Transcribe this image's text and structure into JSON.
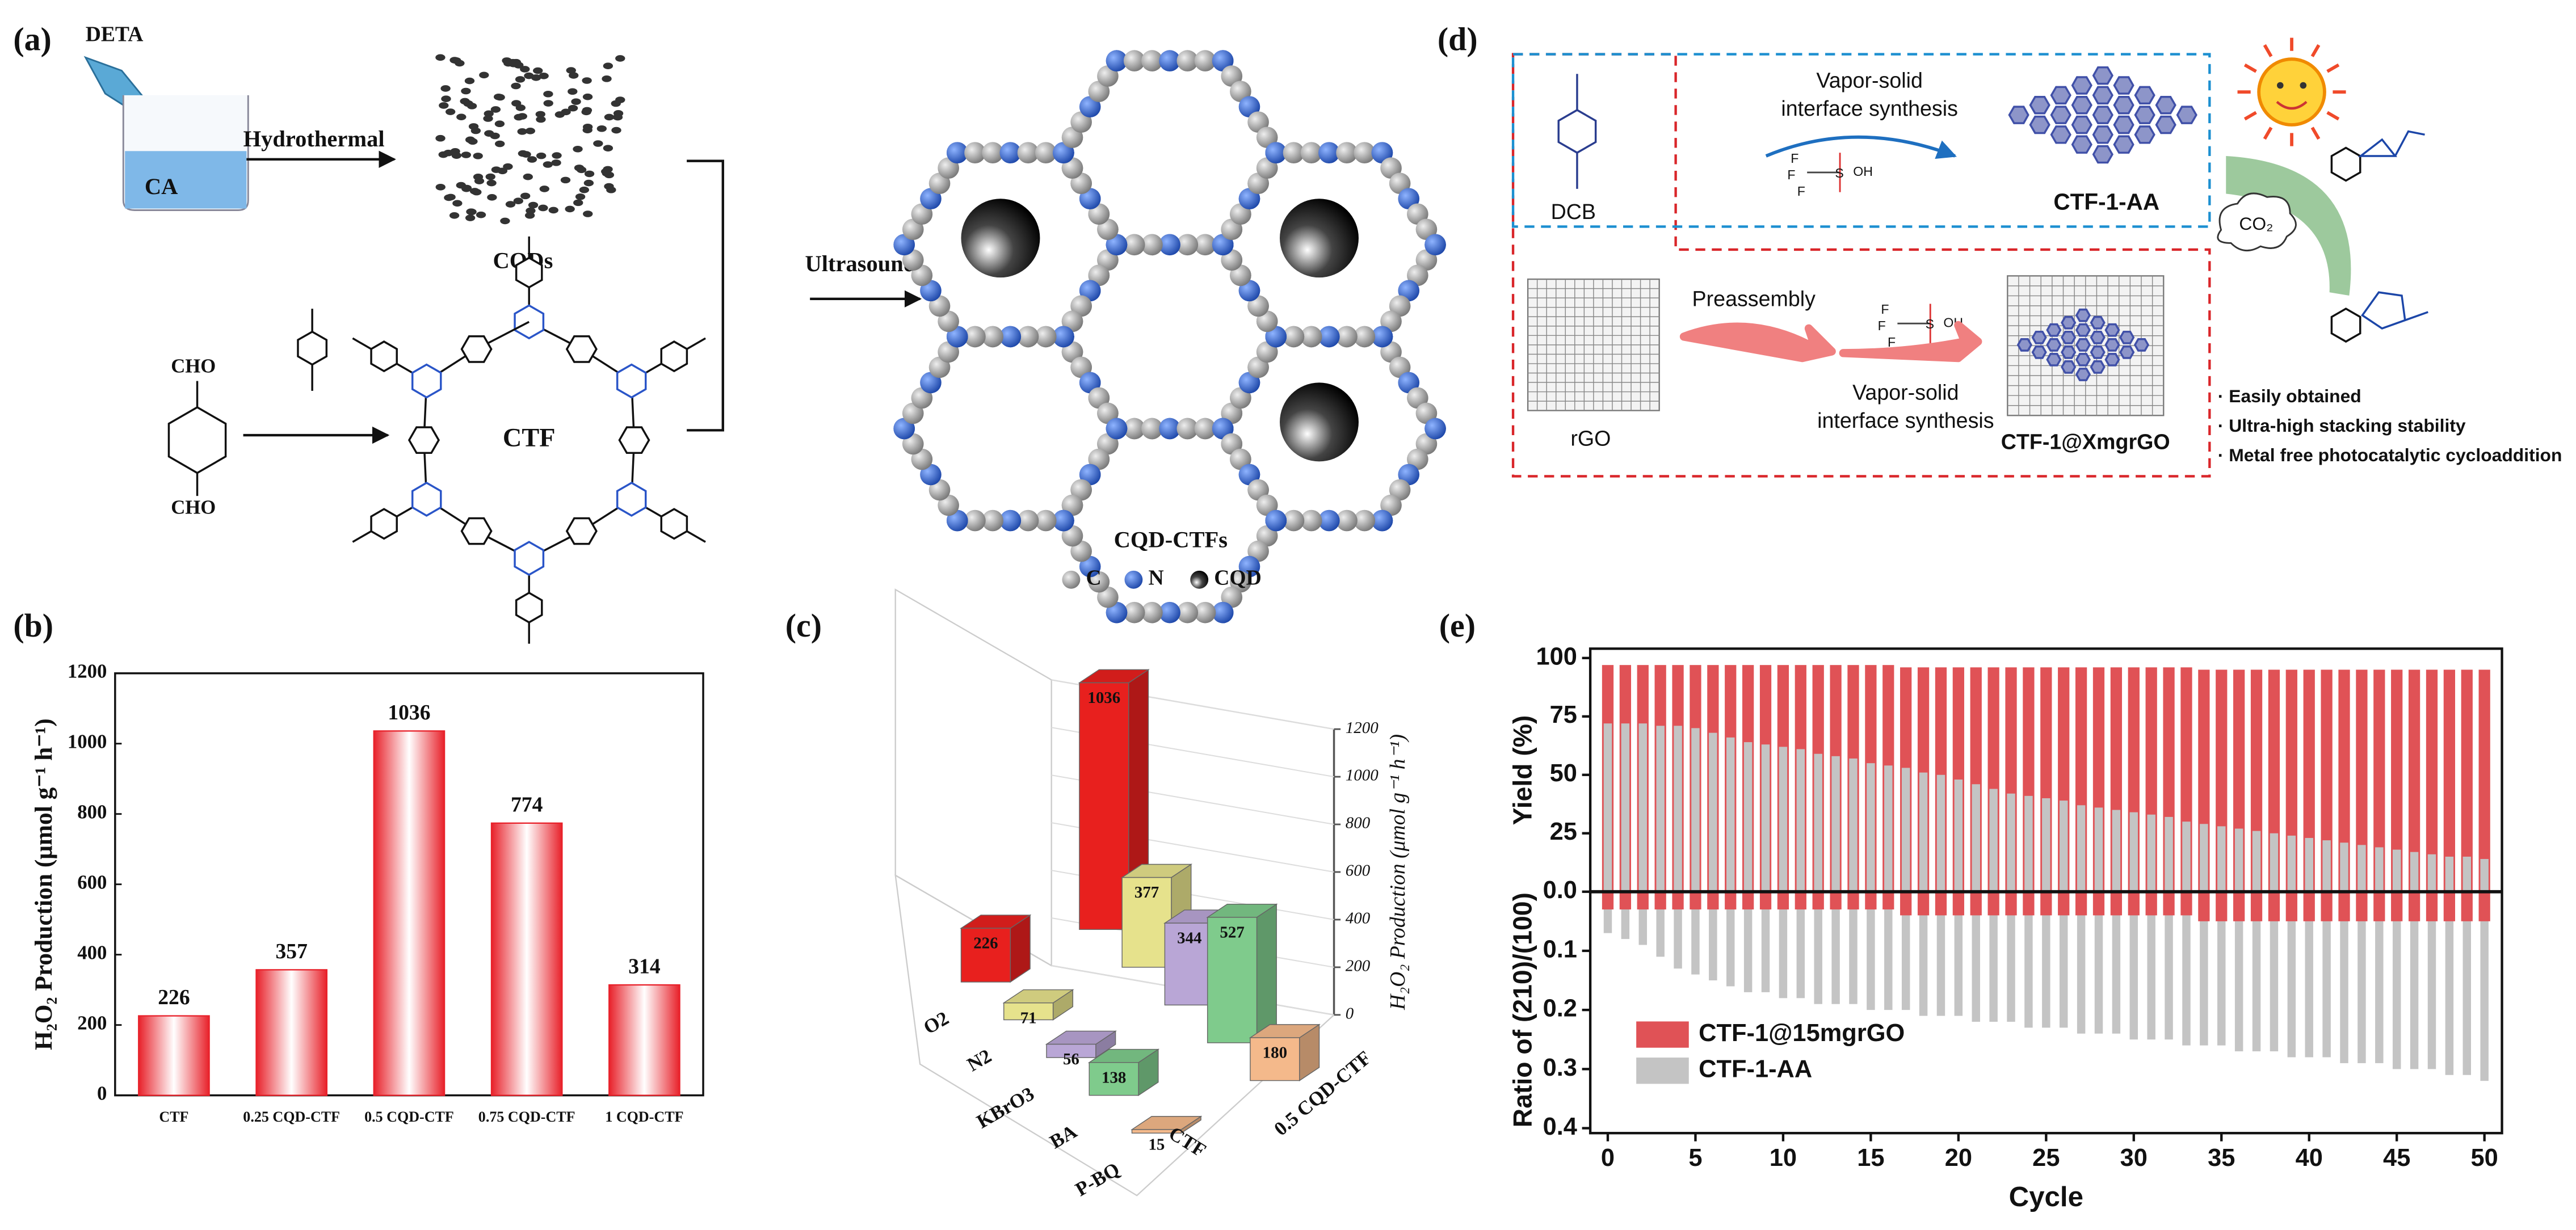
{
  "panel_a": {
    "label": "(a)",
    "reagent": "DETA",
    "solution": "CA",
    "step1": "Hydrothermal",
    "product1": "CQDs",
    "aldehyde_groups": [
      "CHO",
      "CHO"
    ],
    "framework": "CTF",
    "step2": "Ultrasound",
    "product2": "CQD-CTFs",
    "legend": [
      "C",
      "N",
      "CQD"
    ]
  },
  "panel_d": {
    "label": "(d)",
    "monomer": "DCB",
    "method_lines": [
      "Vapor-solid",
      "interface synthesis"
    ],
    "product1": "CTF-1-AA",
    "substrate": "rGO",
    "step": "Preassembly",
    "product2": "CTF-1@XmgrGO",
    "acid_atoms": [
      "F",
      "F",
      "F",
      "S",
      "OH"
    ],
    "gas": "CO₂",
    "features": [
      "· Easily obtained",
      "· Ultra-high stacking stability",
      "· Metal free photocatalytic cycloaddition"
    ]
  },
  "chart_data": [
    {
      "label": "(b)",
      "type": "bar",
      "categories": [
        "CTF",
        "0.25 CQD-CTF",
        "0.5 CQD-CTF",
        "0.75 CQD-CTF",
        "1 CQD-CTF"
      ],
      "values": [
        226,
        357,
        1036,
        774,
        314
      ],
      "color": "#e8212a",
      "ylabel": "H₂O₂ Production (μmol g⁻¹ h⁻¹)",
      "ylim": [
        0,
        1200
      ],
      "yticks": [
        0,
        200,
        400,
        600,
        800,
        1000,
        1200
      ]
    },
    {
      "label": "(c)",
      "type": "bar3d",
      "categories": [
        "O2",
        "N2",
        "KBrO3",
        "BA",
        "P-BQ"
      ],
      "colors": [
        "#e8201e",
        "#e6e28c",
        "#b9a6d6",
        "#7fcb8c",
        "#f4b98b"
      ],
      "series": [
        {
          "name": "CTF",
          "values": [
            226,
            71,
            56,
            138,
            15
          ]
        },
        {
          "name": "0.5 CQD-CTF",
          "values": [
            1036,
            377,
            344,
            527,
            180
          ]
        }
      ],
      "zlabel": "H₂O₂ Production (μmol g⁻¹ h⁻¹)",
      "zlim": [
        0,
        1200
      ],
      "zticks": [
        0,
        200,
        400,
        600,
        800,
        1000,
        1200
      ]
    },
    {
      "label": "(e)",
      "type": "diverging_bar",
      "xlabel": "Cycle",
      "ylabel": "Yield (%)",
      "y2label": "Ratio of (210)/(100)",
      "legend": "lower left",
      "x": [
        0,
        1,
        2,
        3,
        4,
        5,
        6,
        7,
        8,
        9,
        10,
        11,
        12,
        13,
        14,
        15,
        16,
        17,
        18,
        19,
        20,
        21,
        22,
        23,
        24,
        25,
        26,
        27,
        28,
        29,
        30,
        31,
        32,
        33,
        34,
        35,
        36,
        37,
        38,
        39,
        40,
        41,
        42,
        43,
        44,
        45,
        46,
        47,
        48,
        49,
        50
      ],
      "xlim": [
        -1,
        51
      ],
      "xticks": [
        0,
        5,
        10,
        15,
        20,
        25,
        30,
        35,
        40,
        45,
        50
      ],
      "ylim": [
        0,
        104
      ],
      "yticks": [
        {
          "value": 0,
          "label": "0.0"
        },
        25,
        50,
        75,
        100
      ],
      "y2lim": [
        0,
        0.4
      ],
      "y2ticks": [
        0.1,
        0.2,
        0.3,
        0.4
      ],
      "series": [
        {
          "name": "CTF-1@15mgrGO",
          "color": "#e05256",
          "values": [
            97,
            97,
            97,
            97,
            97,
            97,
            97,
            97,
            97,
            97,
            97,
            97,
            97,
            97,
            97,
            97,
            97,
            96,
            96,
            96,
            96,
            96,
            96,
            96,
            96,
            96,
            96,
            96,
            96,
            96,
            96,
            96,
            96,
            96,
            95,
            95,
            95,
            95,
            95,
            95,
            95,
            95,
            95,
            95,
            95,
            95,
            95,
            95,
            95,
            95,
            95
          ],
          "y2_values": [
            0.03,
            0.03,
            0.03,
            0.03,
            0.03,
            0.03,
            0.03,
            0.03,
            0.03,
            0.03,
            0.03,
            0.03,
            0.03,
            0.03,
            0.03,
            0.03,
            0.03,
            0.04,
            0.04,
            0.04,
            0.04,
            0.04,
            0.04,
            0.04,
            0.04,
            0.04,
            0.04,
            0.04,
            0.04,
            0.04,
            0.04,
            0.04,
            0.04,
            0.04,
            0.05,
            0.05,
            0.05,
            0.05,
            0.05,
            0.05,
            0.05,
            0.05,
            0.05,
            0.05,
            0.05,
            0.05,
            0.05,
            0.05,
            0.05,
            0.05,
            0.05
          ]
        },
        {
          "name": "CTF-1-AA",
          "color": "#c4c4c4",
          "values": [
            72,
            72,
            72,
            71,
            71,
            70,
            68,
            66,
            64,
            63,
            62,
            61,
            59,
            58,
            57,
            55,
            54,
            53,
            51,
            50,
            48,
            46,
            44,
            42,
            41,
            40,
            39,
            37,
            36,
            35,
            34,
            33,
            32,
            30,
            29,
            28,
            27,
            26,
            25,
            24,
            23,
            22,
            21,
            20,
            19,
            18,
            17,
            16,
            15,
            15,
            14
          ],
          "y2_values": [
            0.07,
            0.08,
            0.09,
            0.11,
            0.13,
            0.14,
            0.15,
            0.16,
            0.17,
            0.17,
            0.18,
            0.18,
            0.19,
            0.19,
            0.19,
            0.2,
            0.2,
            0.2,
            0.21,
            0.21,
            0.21,
            0.22,
            0.22,
            0.22,
            0.23,
            0.23,
            0.23,
            0.24,
            0.24,
            0.24,
            0.25,
            0.25,
            0.25,
            0.26,
            0.26,
            0.26,
            0.27,
            0.27,
            0.27,
            0.28,
            0.28,
            0.28,
            0.29,
            0.29,
            0.29,
            0.3,
            0.3,
            0.3,
            0.31,
            0.31,
            0.32
          ]
        }
      ]
    }
  ]
}
